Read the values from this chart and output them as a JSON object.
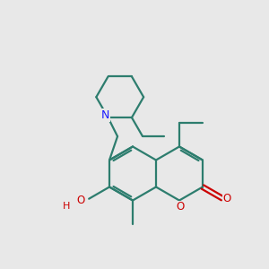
{
  "bg_color": "#e8e8e8",
  "bond_color": "#2d7d6e",
  "n_color": "#1a1aff",
  "o_color": "#cc0000",
  "lw": 1.6,
  "figsize": [
    3.0,
    3.0
  ],
  "dpi": 100,
  "xlim": [
    0,
    10
  ],
  "ylim": [
    0,
    10
  ]
}
